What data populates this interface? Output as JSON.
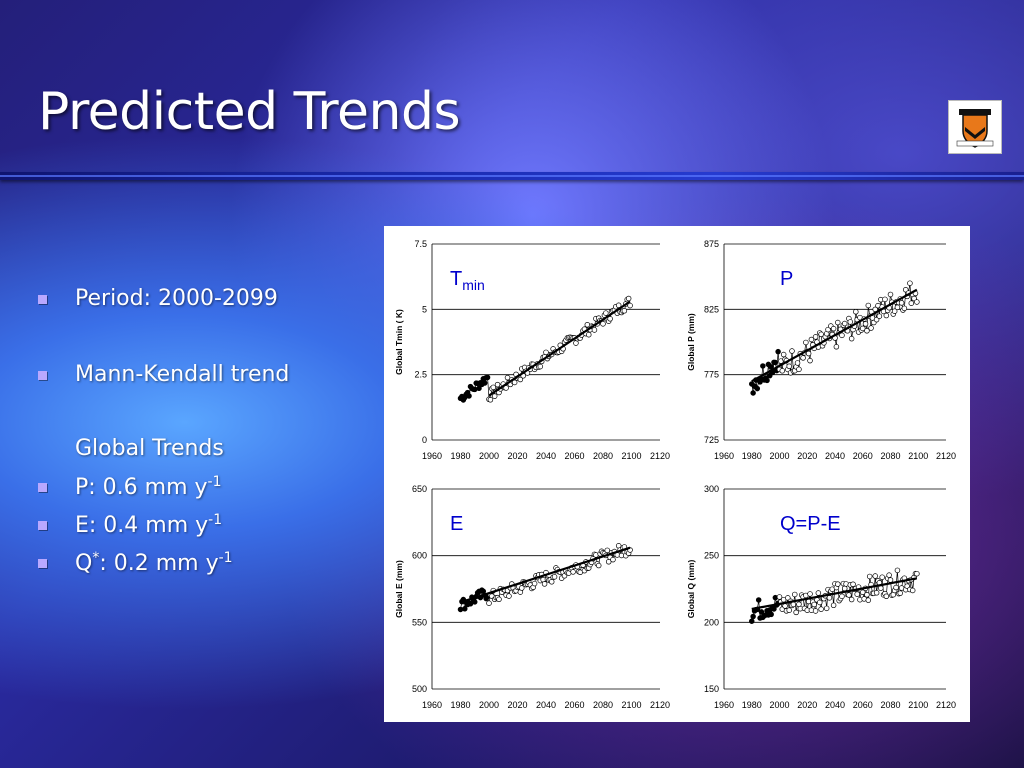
{
  "slide": {
    "title": "Predicted Trends",
    "accent_color": "#b9a8ff"
  },
  "bullets": [
    {
      "text": "Period: 2000-2099",
      "bullet": true
    },
    {
      "text": "Mann-Kendall trend",
      "bullet": true
    },
    {
      "text": "Global Trends",
      "bullet": false
    },
    {
      "text": "P: 0.6 mm y",
      "sup": "-1",
      "bullet": true
    },
    {
      "text": "E: 0.4 mm y",
      "sup": "-1",
      "bullet": true
    },
    {
      "text": "Q",
      "sup1": "*",
      "text2": ": 0.2 mm y",
      "sup": "-1",
      "bullet": true
    }
  ],
  "logo": {
    "icon": "university-shield-icon"
  },
  "chart_data": [
    {
      "type": "scatter",
      "panel_label": "T",
      "panel_label_sub": "min",
      "ylabel": "Global Tmin (  K)",
      "xlim": [
        1960,
        2120
      ],
      "ylim": [
        0,
        7.5
      ],
      "xticks": [
        "1960",
        "1980",
        "2000",
        "2020",
        "2040",
        "2060",
        "2080",
        "2100",
        "2120"
      ],
      "yticks": [
        "0",
        "2.5",
        "5",
        "7.5"
      ],
      "historical": {
        "start": 1980,
        "end": 1999,
        "trend_start": 1.6,
        "trend_end": 2.4
      },
      "projected": {
        "start": 2000,
        "end": 2099,
        "trend_start": 1.7,
        "trend_end": 5.3,
        "noise": 0.22
      },
      "trend_line": [
        [
          2000,
          1.7
        ],
        [
          2099,
          5.3
        ]
      ]
    },
    {
      "type": "scatter",
      "panel_label": "P",
      "ylabel": "Global P (mm)",
      "xlim": [
        1960,
        2120
      ],
      "ylim": [
        725,
        875
      ],
      "xticks": [
        "1960",
        "1980",
        "2000",
        "2020",
        "2040",
        "2060",
        "2080",
        "2100",
        "2120"
      ],
      "yticks": [
        "725",
        "775",
        "825",
        "875"
      ],
      "historical": {
        "start": 1980,
        "end": 1999,
        "trend_start": 768,
        "trend_end": 788
      },
      "projected": {
        "start": 2000,
        "end": 2099,
        "trend_start": 780,
        "trend_end": 840,
        "noise": 10
      },
      "trend_line": [
        [
          1980,
          770
        ],
        [
          2099,
          840
        ]
      ]
    },
    {
      "type": "scatter",
      "panel_label": "E",
      "ylabel": "Global E (mm)",
      "xlim": [
        1960,
        2120
      ],
      "ylim": [
        500,
        650
      ],
      "xticks": [
        "1960",
        "1980",
        "2000",
        "2020",
        "2040",
        "2060",
        "2080",
        "2100",
        "2120"
      ],
      "yticks": [
        "500",
        "550",
        "600",
        "650"
      ],
      "historical": {
        "start": 1980,
        "end": 1999,
        "trend_start": 563,
        "trend_end": 572
      },
      "projected": {
        "start": 2000,
        "end": 2099,
        "trend_start": 568,
        "trend_end": 606,
        "noise": 5
      },
      "trend_line": [
        [
          1980,
          565
        ],
        [
          2099,
          606
        ]
      ]
    },
    {
      "type": "scatter",
      "panel_label": "Q=P-E",
      "ylabel": "Global Q (mm)",
      "xlim": [
        1960,
        2120
      ],
      "ylim": [
        150,
        300
      ],
      "xticks": [
        "1960",
        "1980",
        "2000",
        "2020",
        "2040",
        "2060",
        "2080",
        "2100",
        "2120"
      ],
      "yticks": [
        "150",
        "200",
        "250",
        "300"
      ],
      "historical": {
        "start": 1980,
        "end": 1999,
        "trend_start": 208,
        "trend_end": 214
      },
      "projected": {
        "start": 2000,
        "end": 2099,
        "trend_start": 212,
        "trend_end": 233,
        "noise": 9
      },
      "trend_line": [
        [
          1980,
          210
        ],
        [
          2099,
          233
        ]
      ]
    }
  ]
}
